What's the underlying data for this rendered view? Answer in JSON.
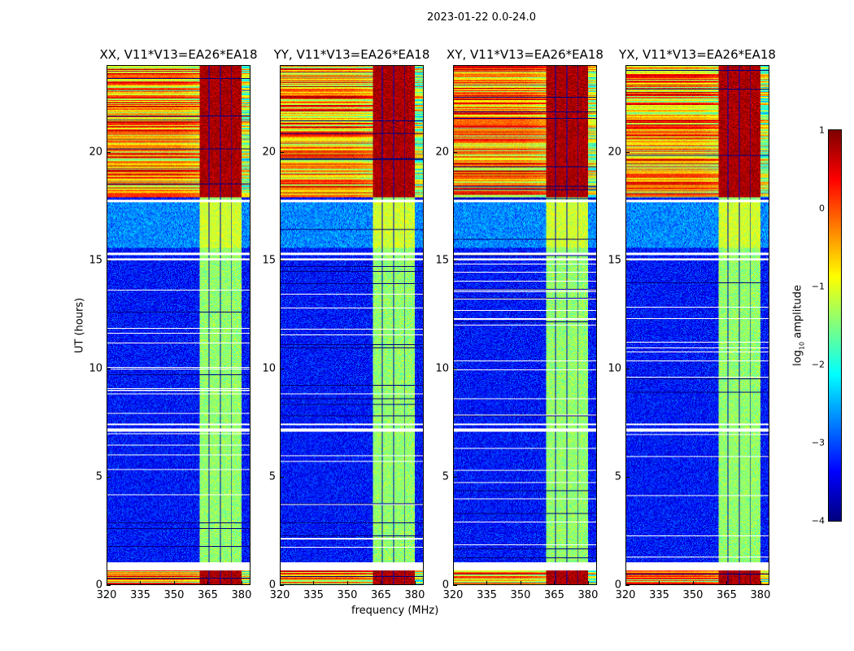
{
  "figure_title": "2023-01-22 0.0-24.0",
  "chart_data": {
    "type": "heatmap",
    "xlabel": "frequency (MHz)",
    "ylabel": "UT (hours)",
    "xlim": [
      320,
      384
    ],
    "ylim": [
      0,
      24
    ],
    "xticks": [
      "320",
      "335",
      "350",
      "365",
      "380"
    ],
    "xtick_values": [
      320,
      335,
      350,
      365,
      380
    ],
    "yticks": [
      "0",
      "5",
      "10",
      "15",
      "20"
    ],
    "ytick_values": [
      0,
      5,
      10,
      15,
      20
    ],
    "panels": [
      {
        "title": "XX, V11*V13=EA26*EA18",
        "seed": 1
      },
      {
        "title": "YY, V11*V13=EA26*EA18",
        "seed": 2
      },
      {
        "title": "XY, V11*V13=EA26*EA18",
        "seed": 3
      },
      {
        "title": "YX, V11*V13=EA26*EA18",
        "seed": 4
      }
    ],
    "colormap": "jet",
    "colorbar": {
      "label": "log10 amplitude",
      "label_main": "log",
      "label_sub": "10",
      "label_rest": " amplitude",
      "range": [
        -4,
        1
      ],
      "ticks": [
        "1",
        "0",
        "−1",
        "−2",
        "−3",
        "−4"
      ],
      "tick_values": [
        1,
        0,
        -1,
        -2,
        -3,
        -4
      ]
    },
    "features": {
      "rfi_band_mhz": [
        361.5,
        380.5
      ],
      "channel_gaps_mhz": [
        365.7,
        370.8,
        375.9
      ],
      "active_periods_h": [
        [
          0,
          0.65
        ],
        [
          17.9,
          24
        ]
      ],
      "moderate_period_h": [
        15.6,
        17.7
      ],
      "flagged_blocks_h": [
        [
          0.65,
          1.0
        ],
        [
          7.05,
          7.2
        ],
        [
          7.35,
          7.45
        ],
        [
          15.0,
          15.1
        ],
        [
          15.25,
          15.35
        ],
        [
          17.7,
          17.8
        ]
      ],
      "base_log_amp": -3.3,
      "band_log_amp_quiet": -1.4,
      "band_log_amp_active": 0.8
    }
  }
}
